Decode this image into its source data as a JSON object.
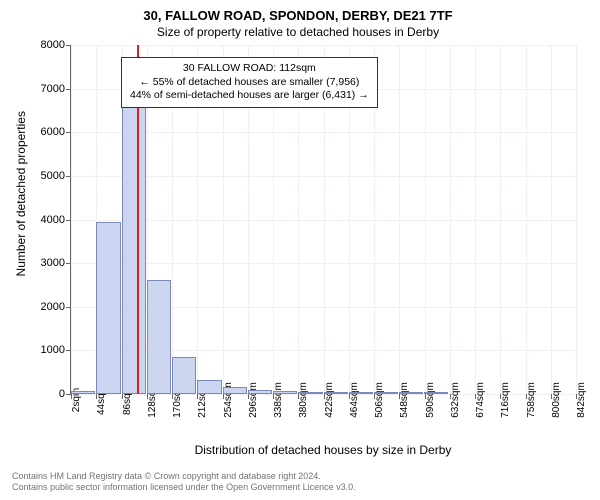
{
  "chart": {
    "type": "histogram",
    "title_main": "30, FALLOW ROAD, SPONDON, DERBY, DE21 7TF",
    "title_sub": "Size of property relative to detached houses in Derby",
    "y_axis_label": "Number of detached properties",
    "x_axis_label": "Distribution of detached houses by size in Derby",
    "background_color": "#ffffff",
    "grid_color": "#f3eef3",
    "bar_fill": "#cbd5f0",
    "bar_border": "#7a8ab8",
    "ref_line_color": "#e02020",
    "ref_line_x": 112,
    "ylim": [
      0,
      8000
    ],
    "ytick_step": 1000,
    "x_start": 2,
    "x_step": 42,
    "x_count": 21,
    "bins": [
      {
        "x": 2,
        "count": 60
      },
      {
        "x": 44,
        "count": 3950
      },
      {
        "x": 86,
        "count": 7050
      },
      {
        "x": 128,
        "count": 2620
      },
      {
        "x": 170,
        "count": 850
      },
      {
        "x": 212,
        "count": 320
      },
      {
        "x": 254,
        "count": 170
      },
      {
        "x": 296,
        "count": 100
      },
      {
        "x": 338,
        "count": 60
      },
      {
        "x": 380,
        "count": 40
      },
      {
        "x": 422,
        "count": 20
      },
      {
        "x": 464,
        "count": 10
      },
      {
        "x": 506,
        "count": 5
      },
      {
        "x": 547,
        "count": 3
      },
      {
        "x": 589,
        "count": 2
      },
      {
        "x": 631,
        "count": 0
      },
      {
        "x": 673,
        "count": 0
      },
      {
        "x": 715,
        "count": 0
      },
      {
        "x": 757,
        "count": 0
      },
      {
        "x": 799,
        "count": 0
      }
    ],
    "annotation": {
      "line1": "30 FALLOW ROAD: 112sqm",
      "line2": "← 55% of detached houses are smaller (7,956)",
      "line3": "44% of semi-detached houses are larger (6,431) →"
    },
    "footer_line1": "Contains HM Land Registry data © Crown copyright and database right 2024.",
    "footer_line2": "Contains public sector information licensed under the Open Government Licence v3.0.",
    "title_fontsize": 13,
    "sub_fontsize": 12,
    "label_fontsize": 12,
    "tick_fontsize": 11
  }
}
